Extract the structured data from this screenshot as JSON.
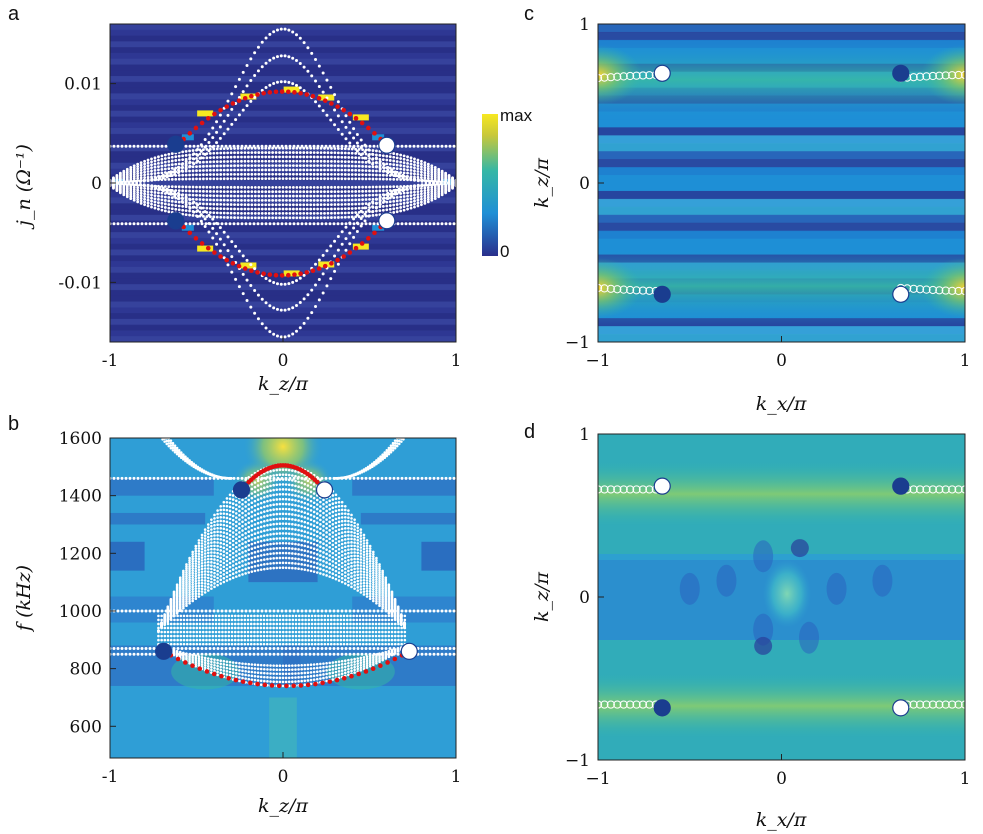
{
  "colors": {
    "dark": "#2a2f8c",
    "mid": "#1f8fd6",
    "teal": "#35b7a6",
    "yellow": "#f7e820",
    "marker_dark": "#1a3d8f",
    "red": "#e01010"
  },
  "chart_data": [
    {
      "id": "a",
      "type": "heatmap",
      "panel_label": "a",
      "xlabel": "k_z/π",
      "ylabel": "j_n (Ω⁻¹)",
      "xlim": [
        -1,
        1
      ],
      "ylim": [
        -0.016,
        0.016
      ],
      "xticks": [
        -1,
        0,
        1
      ],
      "xtick_labels": [
        "-1",
        "0",
        "1"
      ],
      "yticks": [
        0.01,
        0,
        -0.01
      ],
      "ytick_labels": [
        "0.01",
        "0",
        "-0.01"
      ],
      "colorbar": {
        "max_label": "max",
        "min_label": "0"
      },
      "white_band_edges": [
        0.0155,
        0.0128,
        0.0102,
        -0.0102,
        -0.0128,
        -0.0155
      ],
      "bulk_max": 0.0035,
      "edge_flat_levels": [
        0.0037,
        -0.0041
      ],
      "edge_arcs": [
        {
          "name": "upper surface arc",
          "x_start": -0.61,
          "x_end": 0.6,
          "y_end": 0.0038,
          "y_peak": 0.0092
        },
        {
          "name": "lower surface arc",
          "x_start": -0.61,
          "x_end": 0.6,
          "y_end": -0.0038,
          "y_peak": -0.0093
        }
      ],
      "markers": [
        {
          "x": -0.62,
          "y": 0.0039,
          "fill": "dark"
        },
        {
          "x": 0.6,
          "y": 0.0038,
          "fill": "white"
        },
        {
          "x": -0.62,
          "y": -0.0038,
          "fill": "dark"
        },
        {
          "x": 0.6,
          "y": -0.0038,
          "fill": "white"
        }
      ]
    },
    {
      "id": "b",
      "type": "heatmap",
      "panel_label": "b",
      "xlabel": "k_z/π",
      "ylabel": "f (kHz)",
      "xlim": [
        -1,
        1
      ],
      "ylim": [
        490,
        1600
      ],
      "xticks": [
        -1,
        0,
        1
      ],
      "xtick_labels": [
        "-1",
        "0",
        "1"
      ],
      "yticks": [
        1600,
        1400,
        1200,
        1000,
        800,
        600
      ],
      "ytick_labels": [
        "1600",
        "1400",
        "1200",
        "1000",
        "800",
        "600"
      ],
      "flat_lines": [
        1460,
        1000,
        870,
        850
      ],
      "edge_arcs": [
        {
          "name": "upper surface arc",
          "x_start": -0.24,
          "x_end": 0.24,
          "y_end": 1420,
          "y_peak": 1505
        },
        {
          "name": "lower surface arc",
          "x_start": -0.69,
          "x_end": 0.73,
          "y_end": 860,
          "y_peak": 740
        }
      ],
      "markers": [
        {
          "x": -0.24,
          "y": 1420,
          "fill": "dark"
        },
        {
          "x": 0.24,
          "y": 1420,
          "fill": "white"
        },
        {
          "x": -0.69,
          "y": 860,
          "fill": "dark"
        },
        {
          "x": 0.73,
          "y": 860,
          "fill": "white"
        }
      ]
    },
    {
      "id": "c",
      "type": "heatmap",
      "panel_label": "c",
      "xlabel": "k_x/π",
      "ylabel": "k_z/π",
      "xlim": [
        -1,
        1
      ],
      "ylim": [
        -1,
        1
      ],
      "xticks": [
        -1,
        0,
        1
      ],
      "xtick_labels": [
        "−1",
        "0",
        "1"
      ],
      "yticks": [
        1,
        0,
        -1
      ],
      "ytick_labels": [
        "1",
        "0",
        "−1"
      ],
      "arcs": [
        {
          "x_from": -1.0,
          "x_to": -0.65,
          "y": 0.66
        },
        {
          "x_from": 0.65,
          "x_to": 1.0,
          "y": 0.66
        },
        {
          "x_from": -1.0,
          "x_to": -0.65,
          "y": -0.66
        },
        {
          "x_from": 0.65,
          "x_to": 1.0,
          "y": -0.66
        }
      ],
      "markers": [
        {
          "x": -0.65,
          "y": 0.69,
          "fill": "white"
        },
        {
          "x": 0.65,
          "y": 0.69,
          "fill": "dark"
        },
        {
          "x": -0.65,
          "y": -0.7,
          "fill": "dark"
        },
        {
          "x": 0.65,
          "y": -0.7,
          "fill": "white"
        }
      ]
    },
    {
      "id": "d",
      "type": "heatmap",
      "panel_label": "d",
      "xlabel": "k_x/π",
      "ylabel": "k_z/π",
      "xlim": [
        -1,
        1
      ],
      "ylim": [
        -1,
        1
      ],
      "xticks": [
        -1,
        0,
        1
      ],
      "xtick_labels": [
        "−1",
        "0",
        "1"
      ],
      "yticks": [
        1,
        0,
        -1
      ],
      "ytick_labels": [
        "1",
        "0",
        "−1"
      ],
      "arcs": [
        {
          "x_from": -1.0,
          "x_to": -0.65,
          "y": 0.66
        },
        {
          "x_from": 0.65,
          "x_to": 1.0,
          "y": 0.66
        },
        {
          "x_from": -1.0,
          "x_to": -0.65,
          "y": -0.66
        },
        {
          "x_from": 0.65,
          "x_to": 1.0,
          "y": -0.66
        }
      ],
      "markers": [
        {
          "x": -0.65,
          "y": 0.68,
          "fill": "white"
        },
        {
          "x": 0.65,
          "y": 0.68,
          "fill": "dark"
        },
        {
          "x": -0.65,
          "y": -0.68,
          "fill": "dark"
        },
        {
          "x": 0.65,
          "y": -0.68,
          "fill": "white"
        }
      ]
    }
  ]
}
